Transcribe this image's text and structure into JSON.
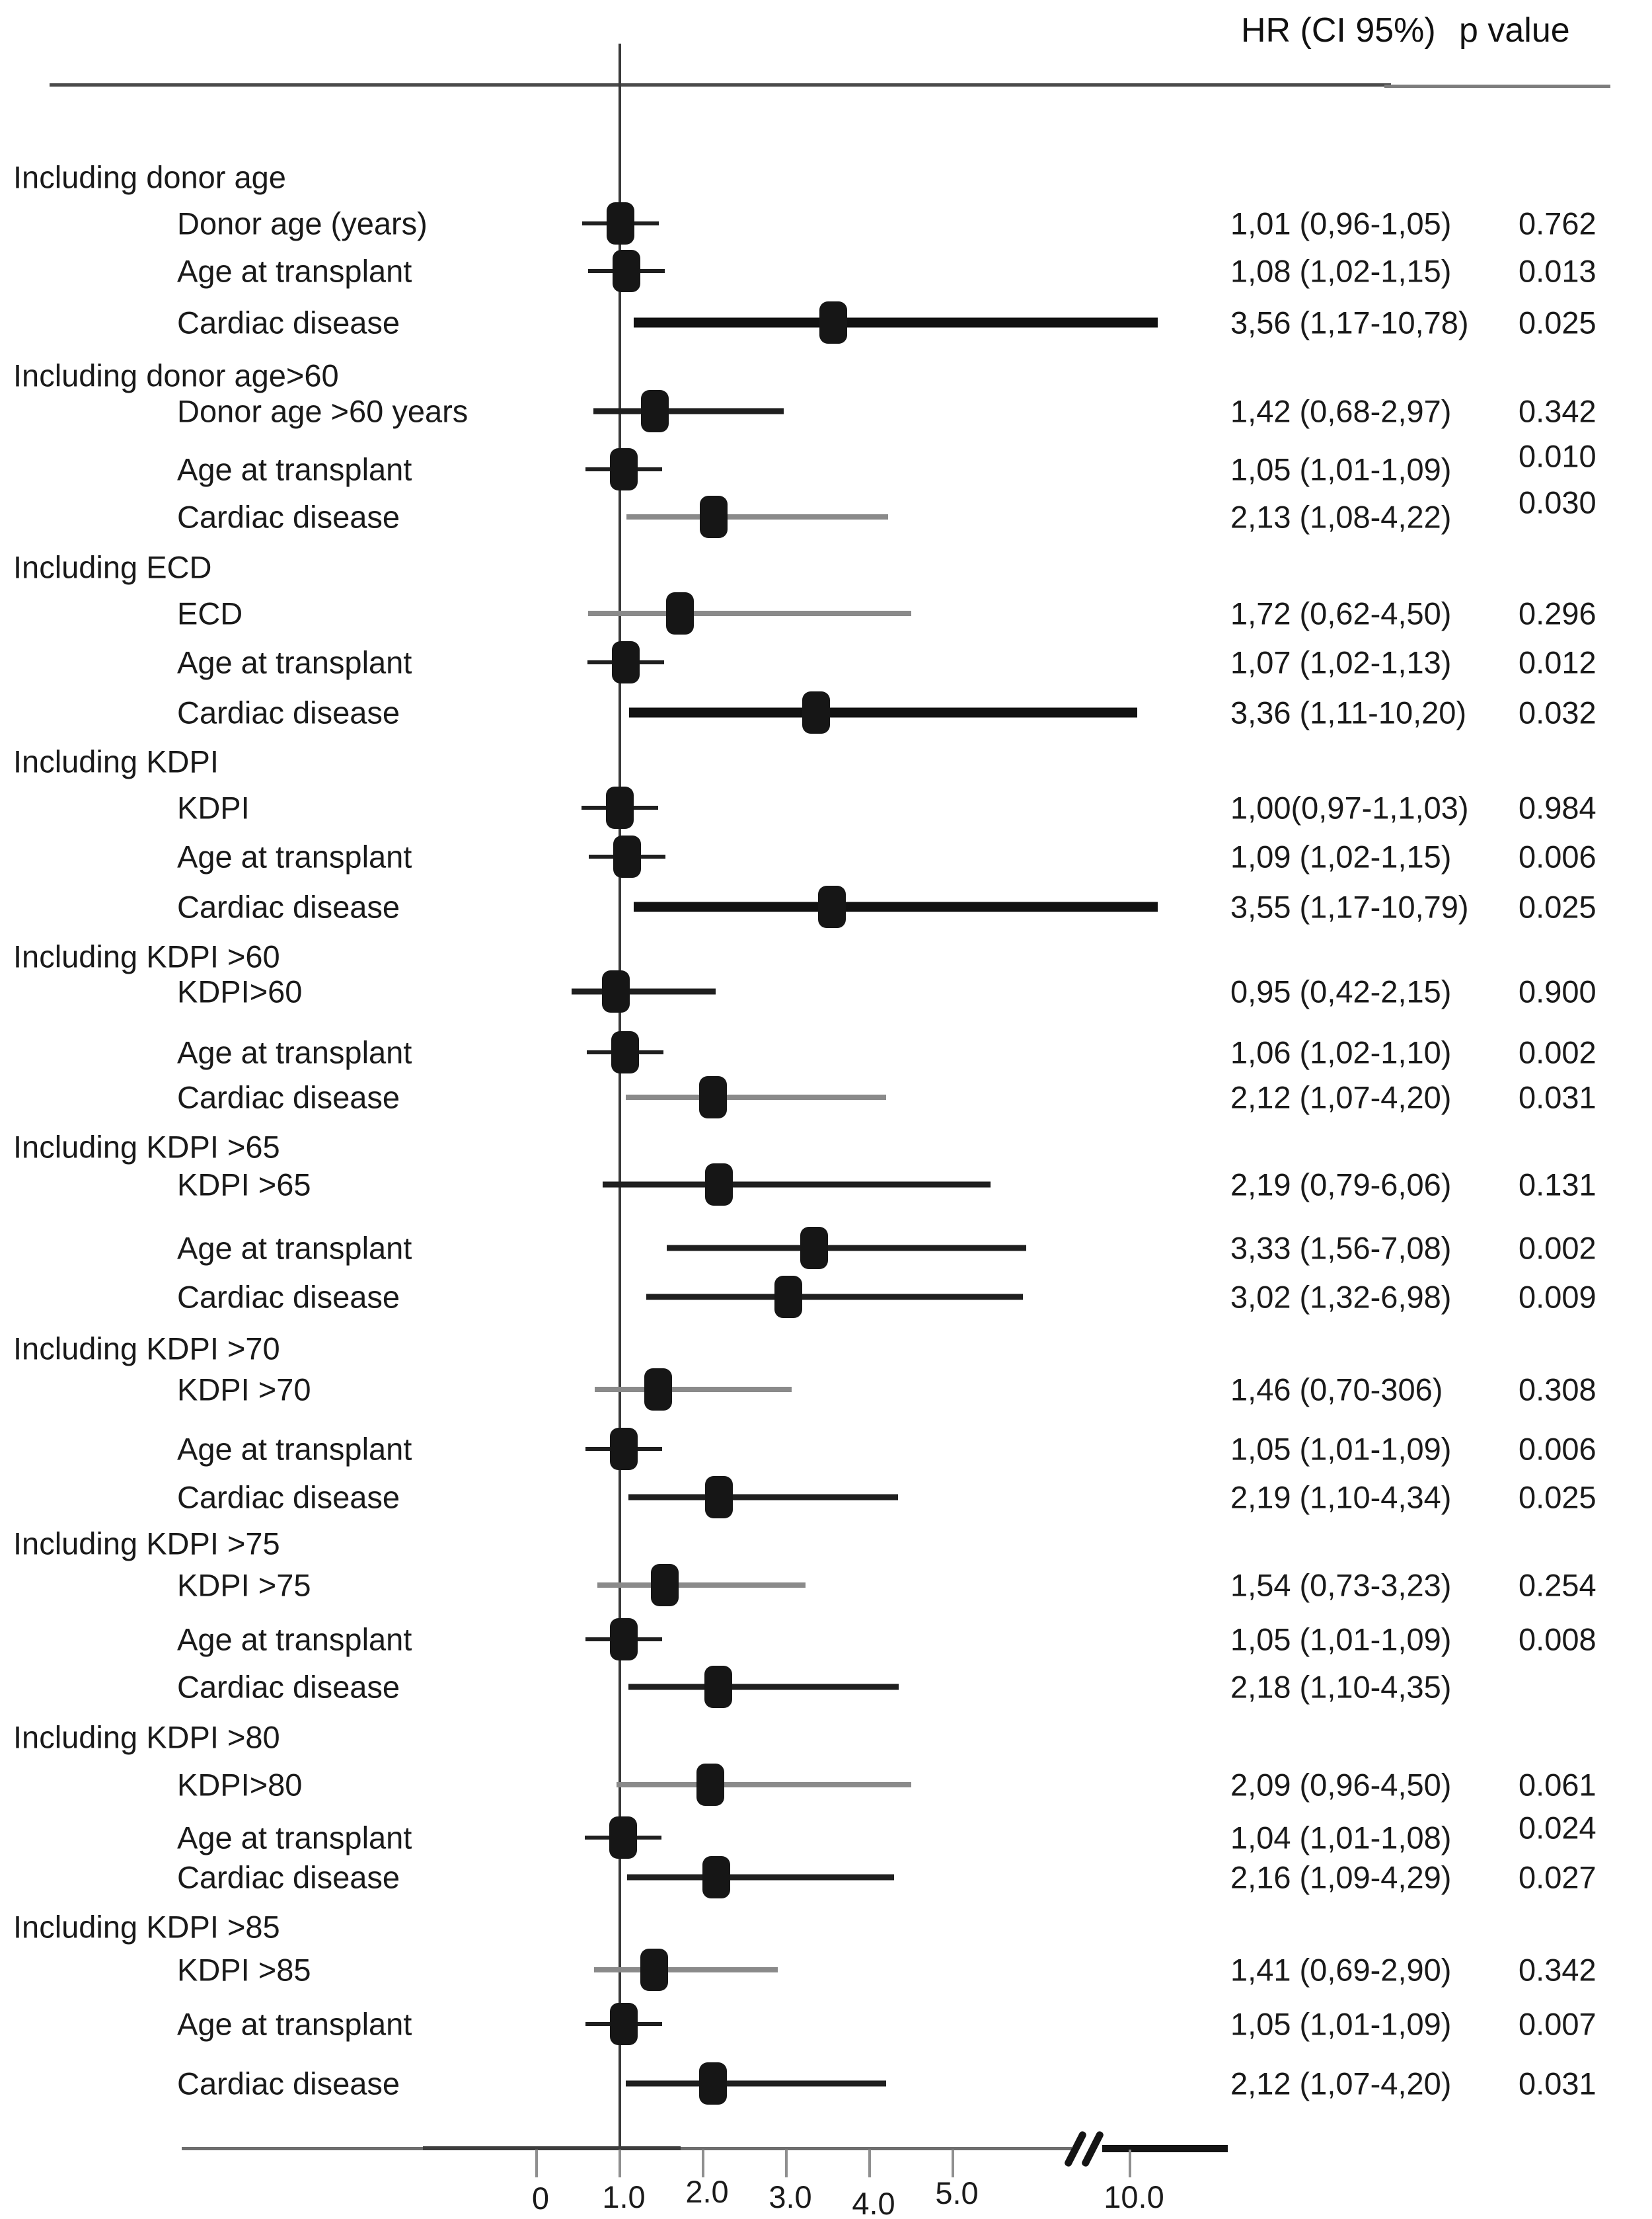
{
  "chart_data": {
    "type": "forest",
    "title": "",
    "xlabel": "",
    "header": {
      "hr_label": "HR (CI 95%)",
      "p_label": "p value"
    },
    "axis": {
      "reference_line": 1.0,
      "range_note": "linear 0-5 with axis break, then 10",
      "break_between": [
        5,
        10
      ],
      "ticks": [
        {
          "label": "0",
          "value": 0
        },
        {
          "label": "1.0",
          "value": 1
        },
        {
          "label": "2.0",
          "value": 2
        },
        {
          "label": "3.0",
          "value": 3
        },
        {
          "label": "4.0",
          "value": 4
        },
        {
          "label": "5.0",
          "value": 5
        },
        {
          "label": "10.0",
          "value": 10
        }
      ]
    },
    "colors": {
      "marker": "#161616",
      "dark_ci": "#1f1f1f",
      "thick_ci": "#111111",
      "gray_ci": "#8a8a8a",
      "axis_line": "#6e6e6e",
      "reference_line": "#3a3a3a"
    },
    "sections": [
      {
        "header": "Including donor age",
        "rows": [
          {
            "label": "Donor age (years)",
            "hr": 1.01,
            "lo": 0.96,
            "hi": 1.05,
            "hr_text": "1,01 (0,96-1,05)",
            "p_text": "0.762",
            "ci_style": "thin"
          },
          {
            "label": "Age at transplant",
            "hr": 1.08,
            "lo": 1.02,
            "hi": 1.15,
            "hr_text": "1,08 (1,02-1,15)",
            "p_text": "0.013",
            "ci_style": "thin"
          },
          {
            "label": "Cardiac disease",
            "hr": 3.56,
            "lo": 1.17,
            "hi": 10.78,
            "hr_text": "3,56 (1,17-10,78)",
            "p_text": "0.025",
            "ci_style": "thick"
          }
        ]
      },
      {
        "header": "Including donor age>60",
        "rows": [
          {
            "label": "Donor age >60 years",
            "hr": 1.42,
            "lo": 0.68,
            "hi": 2.97,
            "hr_text": "1,42 (0,68-2,97)",
            "p_text": "0.342",
            "ci_style": "dark"
          },
          {
            "label": "Age at transplant",
            "hr": 1.05,
            "lo": 1.01,
            "hi": 1.09,
            "hr_text": "1,05 (1,01-1,09)",
            "p_text": "0.010",
            "ci_style": "thin"
          },
          {
            "label": "Cardiac disease",
            "hr": 2.13,
            "lo": 1.08,
            "hi": 4.22,
            "hr_text": "2,13 (1,08-4,22)",
            "p_text": "0.030",
            "ci_style": "gray"
          }
        ]
      },
      {
        "header": "Including ECD",
        "rows": [
          {
            "label": "ECD",
            "hr": 1.72,
            "lo": 0.62,
            "hi": 4.5,
            "hr_text": "1,72 (0,62-4,50)",
            "p_text": "0.296",
            "ci_style": "gray"
          },
          {
            "label": "Age at transplant",
            "hr": 1.07,
            "lo": 1.02,
            "hi": 1.13,
            "hr_text": "1,07 (1,02-1,13)",
            "p_text": "0.012",
            "ci_style": "thin"
          },
          {
            "label": "Cardiac disease",
            "hr": 3.36,
            "lo": 1.11,
            "hi": 10.2,
            "hr_text": "3,36 (1,11-10,20)",
            "p_text": "0.032",
            "ci_style": "thick"
          }
        ]
      },
      {
        "header": "Including KDPI",
        "rows": [
          {
            "label": "KDPI",
            "hr": 1.0,
            "lo": 0.97,
            "hi": 1.03,
            "hr_text": "1,00(0,97-1,1,03)",
            "p_text": "0.984",
            "ci_style": "thin"
          },
          {
            "label": "Age at transplant",
            "hr": 1.09,
            "lo": 1.02,
            "hi": 1.15,
            "hr_text": "1,09 (1,02-1,15)",
            "p_text": "0.006",
            "ci_style": "thin"
          },
          {
            "label": "Cardiac disease",
            "hr": 3.55,
            "lo": 1.17,
            "hi": 10.79,
            "hr_text": "3,55 (1,17-10,79)",
            "p_text": "0.025",
            "ci_style": "thick"
          }
        ]
      },
      {
        "header": "Including KDPI >60",
        "rows": [
          {
            "label": "KDPI>60",
            "hr": 0.95,
            "lo": 0.42,
            "hi": 2.15,
            "hr_text": "0,95 (0,42-2,15)",
            "p_text": "0.900",
            "ci_style": "dark"
          },
          {
            "label": "Age at transplant",
            "hr": 1.06,
            "lo": 1.02,
            "hi": 1.1,
            "hr_text": "1,06 (1,02-1,10)",
            "p_text": "0.002",
            "ci_style": "thin"
          },
          {
            "label": "Cardiac disease",
            "hr": 2.12,
            "lo": 1.07,
            "hi": 4.2,
            "hr_text": "2,12 (1,07-4,20)",
            "p_text": "0.031",
            "ci_style": "gray"
          }
        ]
      },
      {
        "header": "Including KDPI >65",
        "rows": [
          {
            "label": "KDPI >65",
            "hr": 2.19,
            "lo": 0.79,
            "hi": 6.06,
            "hr_text": "2,19 (0,79-6,06)",
            "p_text": "0.131",
            "ci_style": "dark"
          },
          {
            "label": "Age at transplant",
            "hr": 3.33,
            "lo": 1.56,
            "hi": 7.08,
            "hr_text": "3,33 (1,56-7,08)",
            "p_text": "0.002",
            "ci_style": "dark"
          },
          {
            "label": "Cardiac disease",
            "hr": 3.02,
            "lo": 1.32,
            "hi": 6.98,
            "hr_text": "3,02 (1,32-6,98)",
            "p_text": "0.009",
            "ci_style": "dark"
          }
        ]
      },
      {
        "header": "Including KDPI >70",
        "rows": [
          {
            "label": "KDPI >70",
            "hr": 1.46,
            "lo": 0.7,
            "hi": 3.06,
            "hr_text": "1,46 (0,70-306)",
            "p_text": "0.308",
            "ci_style": "gray"
          },
          {
            "label": "Age at transplant",
            "hr": 1.05,
            "lo": 1.01,
            "hi": 1.09,
            "hr_text": "1,05 (1,01-1,09)",
            "p_text": "0.006",
            "ci_style": "thin"
          },
          {
            "label": "Cardiac disease",
            "hr": 2.19,
            "lo": 1.1,
            "hi": 4.34,
            "hr_text": "2,19 (1,10-4,34)",
            "p_text": "0.025",
            "ci_style": "dark"
          }
        ]
      },
      {
        "header": "Including KDPI >75",
        "rows": [
          {
            "label": "KDPI >75",
            "hr": 1.54,
            "lo": 0.73,
            "hi": 3.23,
            "hr_text": "1,54 (0,73-3,23)",
            "p_text": "0.254",
            "ci_style": "gray"
          },
          {
            "label": "Age at transplant",
            "hr": 1.05,
            "lo": 1.01,
            "hi": 1.09,
            "hr_text": "1,05 (1,01-1,09)",
            "p_text": "0.008",
            "ci_style": "thin"
          },
          {
            "label": "Cardiac disease",
            "hr": 2.18,
            "lo": 1.1,
            "hi": 4.35,
            "hr_text": "2,18 (1,10-4,35)",
            "p_text": "",
            "ci_style": "dark"
          }
        ]
      },
      {
        "header": "Including KDPI >80",
        "rows": [
          {
            "label": "KDPI>80",
            "hr": 2.09,
            "lo": 0.96,
            "hi": 4.5,
            "hr_text": "2,09 (0,96-4,50)",
            "p_text": "0.061",
            "ci_style": "gray"
          },
          {
            "label": "Age at transplant",
            "hr": 1.04,
            "lo": 1.01,
            "hi": 1.08,
            "hr_text": "1,04 (1,01-1,08)",
            "p_text": "0.024",
            "ci_style": "thin"
          },
          {
            "label": "Cardiac disease",
            "hr": 2.16,
            "lo": 1.09,
            "hi": 4.29,
            "hr_text": "2,16 (1,09-4,29)",
            "p_text": "0.027",
            "ci_style": "dark"
          }
        ]
      },
      {
        "header": "Including KDPI >85",
        "rows": [
          {
            "label": "KDPI >85",
            "hr": 1.41,
            "lo": 0.69,
            "hi": 2.9,
            "hr_text": "1,41 (0,69-2,90)",
            "p_text": "0.342",
            "ci_style": "gray"
          },
          {
            "label": "Age at transplant",
            "hr": 1.05,
            "lo": 1.01,
            "hi": 1.09,
            "hr_text": "1,05 (1,01-1,09)",
            "p_text": "0.007",
            "ci_style": "thin"
          },
          {
            "label": "Cardiac disease",
            "hr": 2.12,
            "lo": 1.07,
            "hi": 4.2,
            "hr_text": "2,12 (1,07-4,20)",
            "p_text": "0.031",
            "ci_style": "dark"
          }
        ]
      }
    ]
  }
}
